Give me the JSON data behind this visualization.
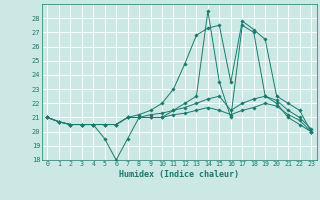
{
  "xlabel": "Humidex (Indice chaleur)",
  "bg_color": "#cce8e4",
  "line_color": "#1a7a6e",
  "grid_color": "#ffffff",
  "xlim": [
    -0.5,
    23.5
  ],
  "ylim": [
    18,
    29
  ],
  "yticks": [
    18,
    19,
    20,
    21,
    22,
    23,
    24,
    25,
    26,
    27,
    28
  ],
  "xticks": [
    0,
    1,
    2,
    3,
    4,
    5,
    6,
    7,
    8,
    9,
    10,
    11,
    12,
    13,
    14,
    15,
    16,
    17,
    18,
    19,
    20,
    21,
    22,
    23
  ],
  "series": [
    [
      21.0,
      20.7,
      20.5,
      20.5,
      20.5,
      19.5,
      18.0,
      19.5,
      21.0,
      21.0,
      21.0,
      21.5,
      22.0,
      22.5,
      28.5,
      23.5,
      21.0,
      27.5,
      27.0,
      22.5,
      22.0,
      21.0,
      20.5,
      20.0
    ],
    [
      21.0,
      20.7,
      20.5,
      20.5,
      20.5,
      20.5,
      20.5,
      21.0,
      21.2,
      21.5,
      22.0,
      23.0,
      24.8,
      26.8,
      27.3,
      27.5,
      23.5,
      27.8,
      27.2,
      26.5,
      22.5,
      22.0,
      21.5,
      20.0
    ],
    [
      21.0,
      20.7,
      20.5,
      20.5,
      20.5,
      20.5,
      20.5,
      21.0,
      21.0,
      21.2,
      21.3,
      21.5,
      21.7,
      22.0,
      22.3,
      22.5,
      21.5,
      22.0,
      22.3,
      22.5,
      22.2,
      21.5,
      21.0,
      20.2
    ],
    [
      21.0,
      20.7,
      20.5,
      20.5,
      20.5,
      20.5,
      20.5,
      21.0,
      21.0,
      21.0,
      21.0,
      21.2,
      21.3,
      21.5,
      21.7,
      21.5,
      21.2,
      21.5,
      21.7,
      22.0,
      21.8,
      21.2,
      20.8,
      20.0
    ]
  ]
}
